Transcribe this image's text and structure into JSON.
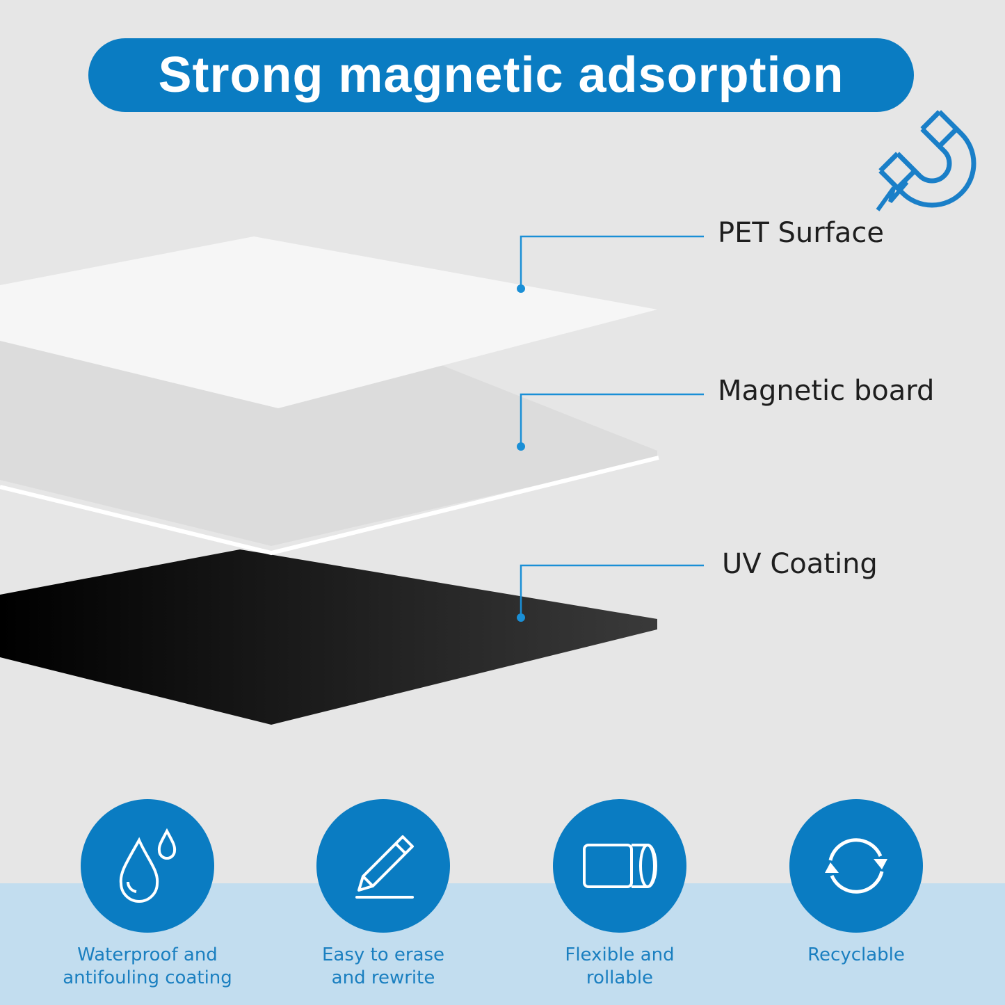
{
  "title": "Strong magnetic adsorption",
  "colors": {
    "accent": "#0a7cc2",
    "background": "#e6e6e6",
    "band": "#c2ddef"
  },
  "layers": [
    {
      "label": "PET Surface"
    },
    {
      "label": "Magnetic board"
    },
    {
      "label": "UV Coating"
    }
  ],
  "badge_icon": "magnet-icon",
  "features": [
    {
      "icon": "water-drops-icon",
      "line1": "Waterproof and",
      "line2": "antifouling coating"
    },
    {
      "icon": "pencil-icon",
      "line1": "Easy to erase",
      "line2": "and rewrite"
    },
    {
      "icon": "roll-icon",
      "line1": "Flexible and",
      "line2": "rollable"
    },
    {
      "icon": "recycle-icon",
      "line1": "Recyclable",
      "line2": ""
    }
  ]
}
